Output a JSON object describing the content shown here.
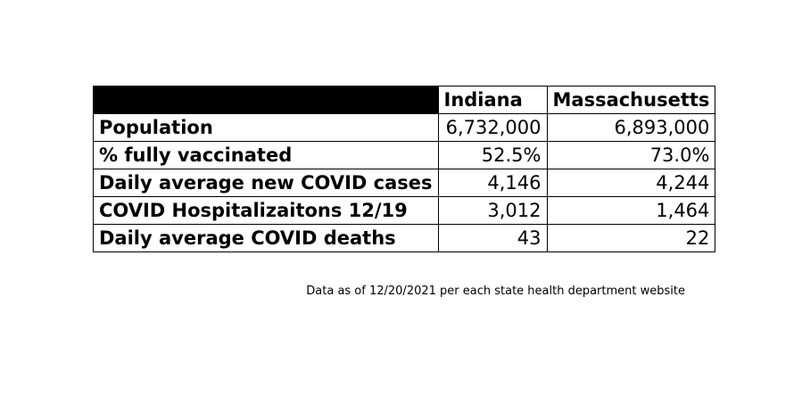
{
  "table": {
    "columns": [
      "",
      "Indiana",
      "Massachusetts"
    ],
    "rows": [
      {
        "label": "Population",
        "indiana": "6,732,000",
        "massachusetts": "6,893,000"
      },
      {
        "label": "% fully vaccinated",
        "indiana": "52.5%",
        "massachusetts": "73.0%"
      },
      {
        "label": "Daily average new COVID cases",
        "indiana": "4,146",
        "massachusetts": "4,244"
      },
      {
        "label": "COVID Hospitalizaitons 12/19",
        "indiana": "3,012",
        "massachusetts": "1,464"
      },
      {
        "label": "Daily average COVID deaths",
        "indiana": "43",
        "massachusetts": "22"
      }
    ],
    "header_corner_color": "#000000"
  },
  "footnote": "Data as of 12/20/2021 per each state health department website"
}
